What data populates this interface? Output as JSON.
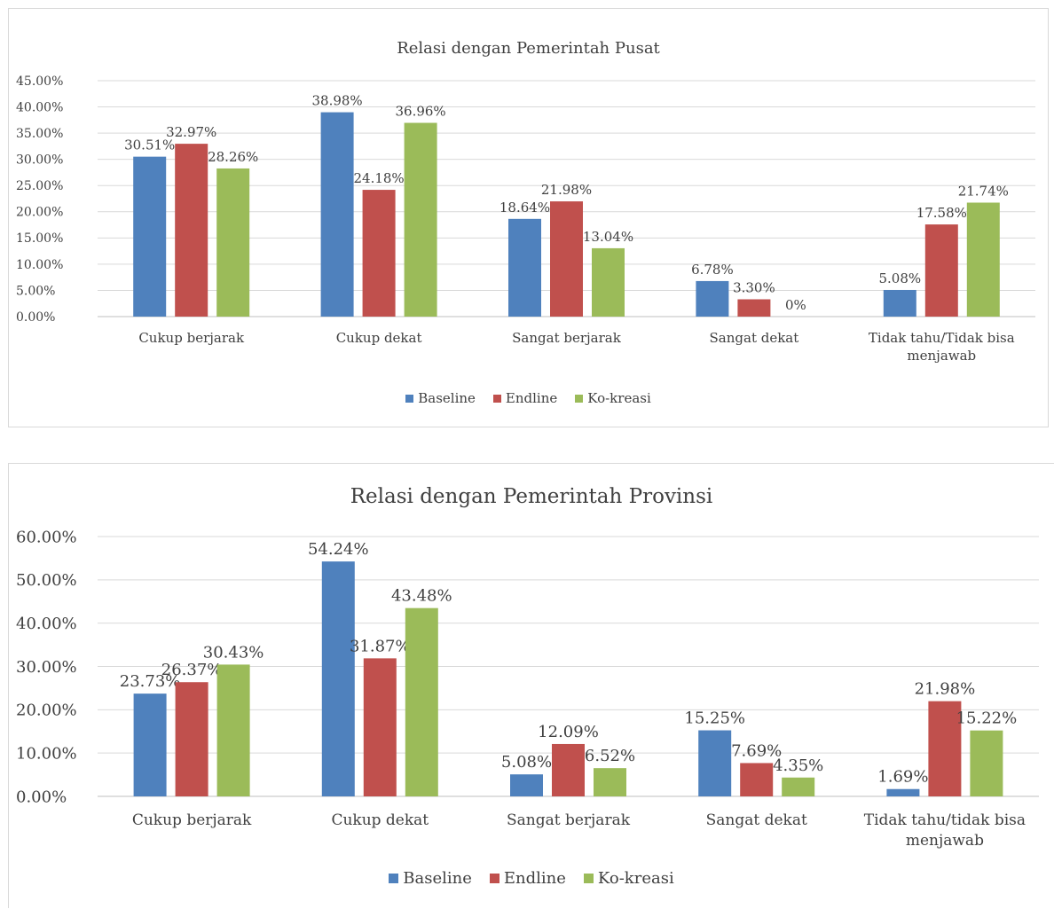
{
  "chart_data": [
    {
      "type": "bar",
      "title": "Relasi dengan Pemerintah Pusat",
      "categories": [
        "Cukup berjarak",
        "Cukup dekat",
        "Sangat berjarak",
        "Sangat dekat",
        "Tidak tahu/Tidak bisa menjawab"
      ],
      "category_lines": [
        [
          "Cukup berjarak"
        ],
        [
          "Cukup dekat"
        ],
        [
          "Sangat berjarak"
        ],
        [
          "Sangat dekat"
        ],
        [
          "Tidak tahu/Tidak bisa",
          "menjawab"
        ]
      ],
      "series": [
        {
          "name": "Baseline",
          "color": "#4f81bd",
          "values": [
            30.51,
            38.98,
            18.64,
            6.78,
            5.08
          ],
          "labels": [
            "30.51%",
            "38.98%",
            "18.64%",
            "6.78%",
            "5.08%"
          ]
        },
        {
          "name": "Endline",
          "color": "#c0504d",
          "values": [
            32.97,
            24.18,
            21.98,
            3.3,
            17.58
          ],
          "labels": [
            "32.97%",
            "24.18%",
            "21.98%",
            "3.30%",
            "17.58%"
          ]
        },
        {
          "name": "Ko-kreasi",
          "color": "#9bbb59",
          "values": [
            28.26,
            36.96,
            13.04,
            0,
            21.74
          ],
          "labels": [
            "28.26%",
            "36.96%",
            "13.04%",
            "0%",
            "21.74%"
          ]
        }
      ],
      "ylim": [
        0,
        45
      ],
      "yticks": [
        "0.00%",
        "5.00%",
        "10.00%",
        "15.00%",
        "20.00%",
        "25.00%",
        "30.00%",
        "35.00%",
        "40.00%",
        "45.00%"
      ],
      "grid": true,
      "legend": "bottom"
    },
    {
      "type": "bar",
      "title": "Relasi dengan Pemerintah Provinsi",
      "categories": [
        "Cukup berjarak",
        "Cukup dekat",
        "Sangat berjarak",
        "Sangat dekat",
        "Tidak tahu/tidak bisa menjawab"
      ],
      "category_lines": [
        [
          "Cukup berjarak"
        ],
        [
          "Cukup dekat"
        ],
        [
          "Sangat berjarak"
        ],
        [
          "Sangat dekat"
        ],
        [
          "Tidak tahu/tidak bisa",
          "menjawab"
        ]
      ],
      "series": [
        {
          "name": "Baseline",
          "color": "#4f81bd",
          "values": [
            23.73,
            54.24,
            5.08,
            15.25,
            1.69
          ],
          "labels": [
            "23.73%",
            "54.24%",
            "5.08%",
            "15.25%",
            "1.69%"
          ]
        },
        {
          "name": "Endline",
          "color": "#c0504d",
          "values": [
            26.37,
            31.87,
            12.09,
            7.69,
            21.98
          ],
          "labels": [
            "26.37%",
            "31.87%",
            "12.09%",
            "7.69%",
            "21.98%"
          ]
        },
        {
          "name": "Ko-kreasi",
          "color": "#9bbb59",
          "values": [
            30.43,
            43.48,
            6.52,
            4.35,
            15.22
          ],
          "labels": [
            "30.43%",
            "43.48%",
            "6.52%",
            "4.35%",
            "15.22%"
          ]
        }
      ],
      "ylim": [
        0,
        60
      ],
      "yticks": [
        "0.00%",
        "10.00%",
        "20.00%",
        "30.00%",
        "40.00%",
        "50.00%",
        "60.00%"
      ],
      "grid": true,
      "legend": "bottom"
    }
  ]
}
